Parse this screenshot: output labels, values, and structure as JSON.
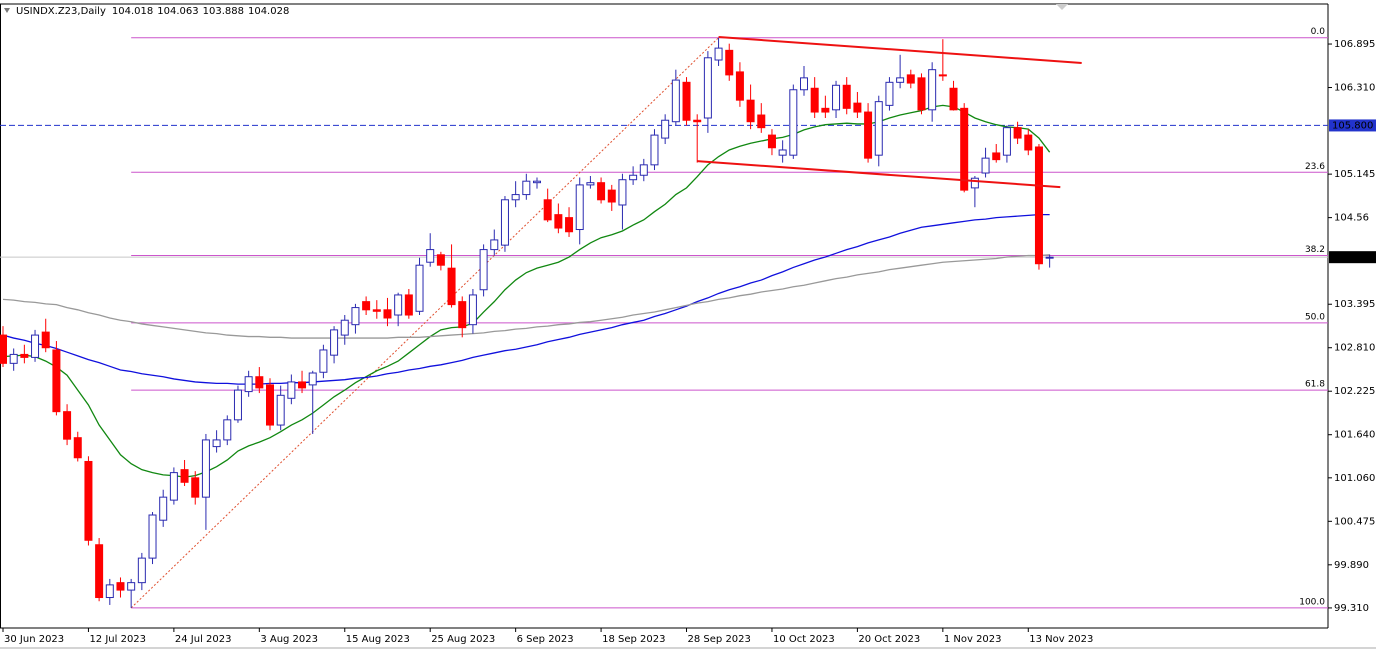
{
  "chart_data": {
    "type": "candlestick",
    "symbol": "USINDX.Z23,Daily",
    "categories": [
      "30 Jun 2023",
      null,
      null,
      null,
      null,
      null,
      null,
      null,
      "12 Jul 2023",
      null,
      null,
      null,
      null,
      null,
      null,
      null,
      "24 Jul 2023",
      null,
      null,
      null,
      null,
      null,
      null,
      null,
      "3 Aug 2023",
      null,
      null,
      null,
      null,
      null,
      null,
      null,
      "15 Aug 2023",
      null,
      null,
      null,
      null,
      null,
      null,
      null,
      "25 Aug 2023",
      null,
      null,
      null,
      null,
      null,
      null,
      null,
      "6 Sep 2023",
      null,
      null,
      null,
      null,
      null,
      null,
      null,
      "18 Sep 2023",
      null,
      null,
      null,
      null,
      null,
      null,
      null,
      "28 Sep 2023",
      null,
      null,
      null,
      null,
      null,
      null,
      null,
      "10 Oct 2023",
      null,
      null,
      null,
      null,
      null,
      null,
      null,
      "20 Oct 2023",
      null,
      null,
      null,
      null,
      null,
      null,
      null,
      "1 Nov 2023",
      null,
      null,
      null,
      null,
      null,
      null,
      null,
      "13 Nov 2023",
      null,
      null
    ],
    "open": [
      102.98,
      102.6,
      102.72,
      102.68,
      103.02,
      102.78,
      101.95,
      101.6,
      101.28,
      100.16,
      99.45,
      99.65,
      99.55,
      99.65,
      99.98,
      100.49,
      100.76,
      101.17,
      101.06,
      100.8,
      101.48,
      101.57,
      101.84,
      102.22,
      102.42,
      102.31,
      101.77,
      102.13,
      102.35,
      102.31,
      102.48,
      102.71,
      102.98,
      103.12,
      103.43,
      103.32,
      103.32,
      103.25,
      103.52,
      103.3,
      103.96,
      104.06,
      103.88,
      103.43,
      103.12,
      103.59,
      104.13,
      104.19,
      104.8,
      104.87,
      105.03,
      104.8,
      104.6,
      104.56,
      104.4,
      105.0,
      105.03,
      104.93,
      104.73,
      105.07,
      105.13,
      105.27,
      105.63,
      105.85,
      106.38,
      105.87,
      105.9,
      106.68,
      106.81,
      106.52,
      106.14,
      105.94,
      105.67,
      105.4,
      105.4,
      106.28,
      106.3,
      106.03,
      106.01,
      106.34,
      106.1,
      105.98,
      105.4,
      106.07,
      106.38,
      106.48,
      106.44,
      106.01,
      106.48,
      106.3,
      106.03,
      104.96,
      105.16,
      105.43,
      105.4,
      105.77,
      105.67,
      105.51,
      104.018
    ],
    "high": [
      103.1,
      102.8,
      102.85,
      103.05,
      103.2,
      102.9,
      102.05,
      101.68,
      101.35,
      100.25,
      99.7,
      99.72,
      99.7,
      100.05,
      100.6,
      100.9,
      101.2,
      101.3,
      101.15,
      101.65,
      101.7,
      101.9,
      102.3,
      102.5,
      102.55,
      102.4,
      102.3,
      102.45,
      102.5,
      102.5,
      102.85,
      103.1,
      103.25,
      103.4,
      103.5,
      103.45,
      103.48,
      103.55,
      103.6,
      104.02,
      104.35,
      104.1,
      104.2,
      103.5,
      103.6,
      104.2,
      104.4,
      104.85,
      105.05,
      105.15,
      105.1,
      104.95,
      104.75,
      104.7,
      105.1,
      105.12,
      105.1,
      105.0,
      105.15,
      105.25,
      105.35,
      105.75,
      105.95,
      106.55,
      106.45,
      105.95,
      106.8,
      106.98,
      106.9,
      106.65,
      106.35,
      106.1,
      105.75,
      105.6,
      106.35,
      106.6,
      106.45,
      106.2,
      106.4,
      106.45,
      106.25,
      106.1,
      106.2,
      106.45,
      106.75,
      106.55,
      106.5,
      106.65,
      106.96,
      106.4,
      106.1,
      105.12,
      105.5,
      105.55,
      105.8,
      105.85,
      105.75,
      105.55,
      104.063
    ],
    "low": [
      102.55,
      102.5,
      102.6,
      102.62,
      102.75,
      101.9,
      101.5,
      101.28,
      100.15,
      99.4,
      99.35,
      99.45,
      99.31,
      99.55,
      99.9,
      100.4,
      100.7,
      100.95,
      100.7,
      100.36,
      101.4,
      101.5,
      101.8,
      102.15,
      102.2,
      101.7,
      101.7,
      102.05,
      102.2,
      101.65,
      102.4,
      102.6,
      102.85,
      103.0,
      103.25,
      103.2,
      103.1,
      103.1,
      103.2,
      103.25,
      103.9,
      103.85,
      103.35,
      102.95,
      103.0,
      103.5,
      104.05,
      104.1,
      104.7,
      104.8,
      104.95,
      104.5,
      104.35,
      104.3,
      104.2,
      104.95,
      104.75,
      104.65,
      104.4,
      105.0,
      105.05,
      105.2,
      105.55,
      105.8,
      105.8,
      105.3,
      105.7,
      106.6,
      106.4,
      106.05,
      105.75,
      105.7,
      105.4,
      105.3,
      105.35,
      106.2,
      105.9,
      105.9,
      105.9,
      105.95,
      105.9,
      105.3,
      105.25,
      106.0,
      106.3,
      106.3,
      105.95,
      105.85,
      106.4,
      106.0,
      104.9,
      104.7,
      105.1,
      105.3,
      105.3,
      105.55,
      105.4,
      103.86,
      103.888
    ],
    "close": [
      102.6,
      102.72,
      102.68,
      102.98,
      102.81,
      101.95,
      101.58,
      101.33,
      100.22,
      99.45,
      99.62,
      99.55,
      99.65,
      99.98,
      100.56,
      100.8,
      101.13,
      101.0,
      100.8,
      101.57,
      101.57,
      101.84,
      102.24,
      102.42,
      102.27,
      101.77,
      102.17,
      102.35,
      102.27,
      102.47,
      102.78,
      103.05,
      103.18,
      103.35,
      103.32,
      103.3,
      103.21,
      103.52,
      103.25,
      103.92,
      104.13,
      103.92,
      103.39,
      103.08,
      103.52,
      104.13,
      104.26,
      104.8,
      104.87,
      105.05,
      105.05,
      104.53,
      104.42,
      104.37,
      105.0,
      105.03,
      104.8,
      104.77,
      105.07,
      105.13,
      105.27,
      105.67,
      105.87,
      106.41,
      105.87,
      105.85,
      106.71,
      106.84,
      106.48,
      106.14,
      105.85,
      105.77,
      105.5,
      105.47,
      106.28,
      106.44,
      105.98,
      105.98,
      106.34,
      106.03,
      105.98,
      105.36,
      106.12,
      106.38,
      106.44,
      106.37,
      106.01,
      106.55,
      106.47,
      106.01,
      104.93,
      105.09,
      105.36,
      105.34,
      105.77,
      105.63,
      105.47,
      103.94,
      104.028
    ],
    "up_color": "#2a2ab0",
    "down_color": "#ff0000",
    "moving_averages": [
      {
        "color": "#118811",
        "values": [
          102.69,
          102.7,
          102.71,
          102.69,
          102.63,
          102.55,
          102.44,
          102.24,
          102.04,
          101.77,
          101.57,
          101.37,
          101.25,
          101.17,
          101.13,
          101.1,
          101.09,
          101.07,
          101.09,
          101.14,
          101.21,
          101.3,
          101.42,
          101.49,
          101.54,
          101.6,
          101.68,
          101.77,
          101.84,
          101.93,
          102.04,
          102.15,
          102.24,
          102.34,
          102.42,
          102.5,
          102.56,
          102.63,
          102.74,
          102.85,
          102.96,
          103.05,
          103.08,
          103.09,
          103.14,
          103.29,
          103.43,
          103.59,
          103.72,
          103.82,
          103.88,
          103.92,
          103.96,
          104.03,
          104.13,
          104.22,
          104.29,
          104.33,
          104.38,
          104.46,
          104.53,
          104.64,
          104.74,
          104.87,
          104.96,
          105.11,
          105.27,
          105.38,
          105.47,
          105.52,
          105.56,
          105.59,
          105.62,
          105.64,
          105.68,
          105.74,
          105.78,
          105.81,
          105.82,
          105.83,
          105.82,
          105.82,
          105.85,
          105.9,
          105.94,
          105.97,
          106.0,
          106.05,
          106.07,
          106.05,
          105.98,
          105.9,
          105.85,
          105.81,
          105.78,
          105.77,
          105.75,
          105.63,
          105.44
        ]
      },
      {
        "color": "#1010dd",
        "values": [
          102.98,
          102.94,
          102.91,
          102.87,
          102.84,
          102.8,
          102.75,
          102.7,
          102.65,
          102.61,
          102.56,
          102.51,
          102.49,
          102.46,
          102.44,
          102.42,
          102.39,
          102.37,
          102.35,
          102.34,
          102.33,
          102.33,
          102.32,
          102.32,
          102.32,
          102.33,
          102.33,
          102.34,
          102.34,
          102.35,
          102.36,
          102.37,
          102.38,
          102.4,
          102.41,
          102.43,
          102.46,
          102.48,
          102.51,
          102.53,
          102.56,
          102.58,
          102.61,
          102.64,
          102.68,
          102.71,
          102.74,
          102.77,
          102.79,
          102.82,
          102.85,
          102.89,
          102.92,
          102.95,
          102.99,
          103.02,
          103.05,
          103.08,
          103.12,
          103.15,
          103.18,
          103.23,
          103.27,
          103.32,
          103.37,
          103.43,
          103.48,
          103.54,
          103.59,
          103.63,
          103.68,
          103.72,
          103.78,
          103.83,
          103.89,
          103.94,
          103.99,
          104.03,
          104.08,
          104.13,
          104.17,
          104.22,
          104.26,
          104.3,
          104.35,
          104.39,
          104.43,
          104.45,
          104.47,
          104.49,
          104.51,
          104.53,
          104.54,
          104.56,
          104.57,
          104.58,
          104.59,
          104.6,
          104.6
        ]
      },
      {
        "color": "#999999",
        "values": [
          103.46,
          103.45,
          103.43,
          103.42,
          103.4,
          103.39,
          103.35,
          103.32,
          103.28,
          103.25,
          103.21,
          103.18,
          103.16,
          103.13,
          103.11,
          103.09,
          103.07,
          103.05,
          103.03,
          103.01,
          103.0,
          102.98,
          102.97,
          102.96,
          102.96,
          102.95,
          102.95,
          102.94,
          102.94,
          102.94,
          102.94,
          102.94,
          102.94,
          102.94,
          102.94,
          102.94,
          102.94,
          102.95,
          102.95,
          102.95,
          102.96,
          102.97,
          102.98,
          102.99,
          103.0,
          103.01,
          103.03,
          103.04,
          103.06,
          103.07,
          103.09,
          103.1,
          103.12,
          103.13,
          103.15,
          103.16,
          103.18,
          103.2,
          103.22,
          103.25,
          103.27,
          103.29,
          103.32,
          103.35,
          103.38,
          103.41,
          103.43,
          103.46,
          103.48,
          103.51,
          103.53,
          103.56,
          103.58,
          103.6,
          103.63,
          103.65,
          103.68,
          103.71,
          103.74,
          103.76,
          103.79,
          103.81,
          103.83,
          103.86,
          103.88,
          103.9,
          103.92,
          103.94,
          103.96,
          103.97,
          103.98,
          103.99,
          104.0,
          104.01,
          104.03,
          104.04,
          104.05,
          104.05,
          104.06
        ]
      }
    ],
    "fib_color": "#cc55cc",
    "fib_levels": [
      {
        "label": "0.0",
        "value": 106.98
      },
      {
        "label": "23.6",
        "value": 105.17
      },
      {
        "label": "38.2",
        "value": 104.05
      },
      {
        "label": "50.0",
        "value": 103.145
      },
      {
        "label": "61.8",
        "value": 102.24
      },
      {
        "label": "100.0",
        "value": 99.31
      }
    ],
    "trendline_color": "#ee1111",
    "trendlines": [
      {
        "x": [
          67,
          101
        ],
        "y": [
          106.99,
          106.64
        ]
      },
      {
        "x": [
          65,
          99
        ],
        "y": [
          105.32,
          104.97
        ]
      }
    ],
    "hline": {
      "value": 105.8,
      "label": "105.800",
      "color": "#2233cc"
    },
    "ylim": [
      99.04,
      107.42
    ],
    "yticks": [
      106.895,
      {
        "value": 106.31,
        "label": "106.310"
      },
      105.145,
      104.56,
      103.395,
      {
        "value": 102.81,
        "label": "102.810"
      },
      102.225,
      {
        "value": 101.64,
        "label": "101.640"
      },
      {
        "value": 101.06,
        "label": "101.060"
      },
      100.475,
      {
        "value": 99.89,
        "label": "99.890"
      },
      {
        "value": 99.31,
        "label": "99.310"
      }
    ],
    "grid": false
  }
}
